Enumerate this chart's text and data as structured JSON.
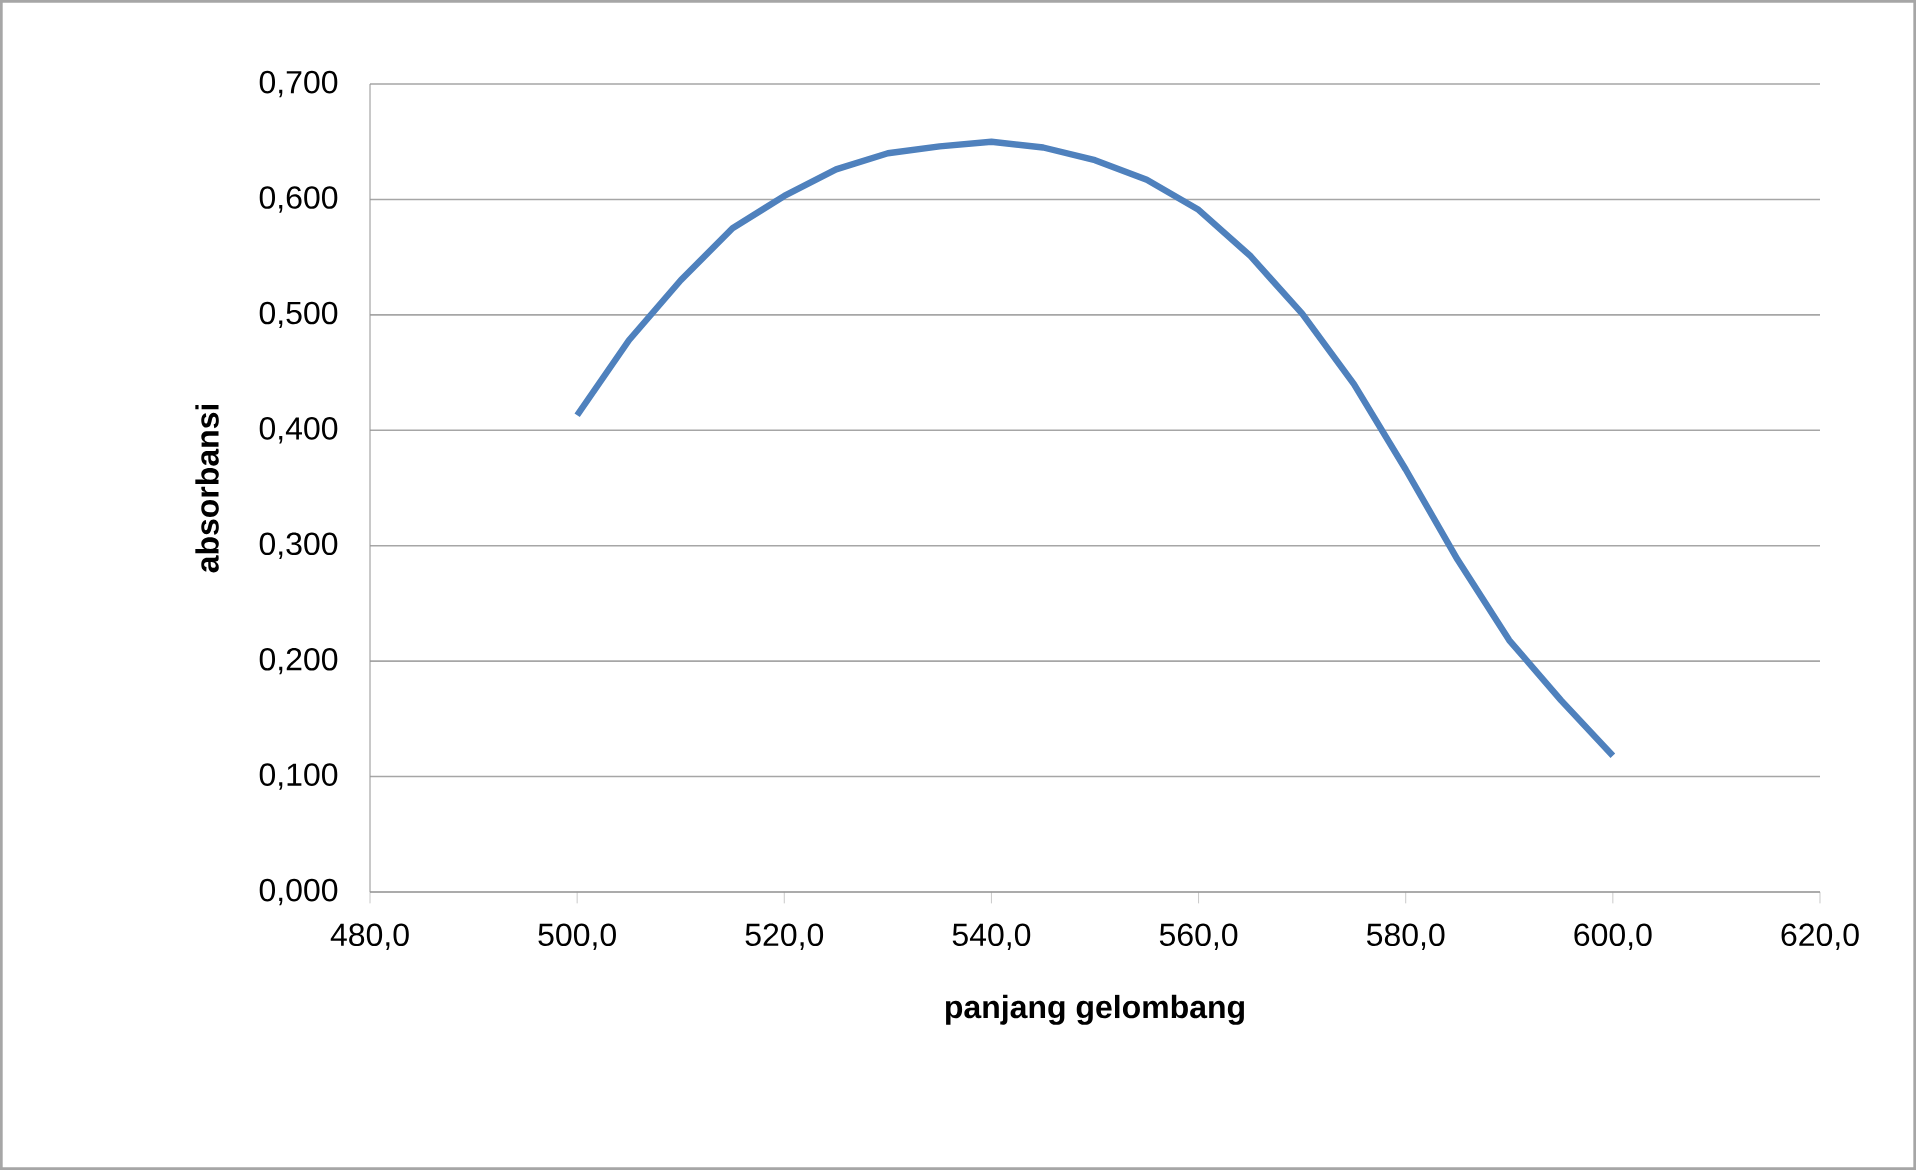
{
  "chart_data": {
    "type": "line",
    "xlabel": "panjang gelombang",
    "ylabel": "absorbansi",
    "x": [
      500,
      505,
      510,
      515,
      520,
      525,
      530,
      535,
      540,
      545,
      550,
      555,
      560,
      565,
      570,
      575,
      580,
      585,
      590,
      595,
      600
    ],
    "series": [
      {
        "color": "#4f81bd",
        "values": [
          0.413,
          0.478,
          0.53,
          0.575,
          0.603,
          0.626,
          0.64,
          0.646,
          0.65,
          0.645,
          0.634,
          0.617,
          0.591,
          0.551,
          0.501,
          0.44,
          0.366,
          0.288,
          0.218,
          0.166,
          0.118
        ]
      }
    ],
    "xlim": [
      480,
      620
    ],
    "xticks": [
      {
        "value": 480,
        "label": "480,0"
      },
      {
        "value": 500,
        "label": "500,0"
      },
      {
        "value": 520,
        "label": "520,0"
      },
      {
        "value": 540,
        "label": "540,0"
      },
      {
        "value": 560,
        "label": "560,0"
      },
      {
        "value": 580,
        "label": "580,0"
      },
      {
        "value": 600,
        "label": "600,0"
      },
      {
        "value": 620,
        "label": "620,0"
      }
    ],
    "ylim": [
      0,
      0.7
    ],
    "yticks": [
      {
        "value": 0,
        "label": "0,000"
      },
      {
        "value": 0.1,
        "label": "0,100"
      },
      {
        "value": 0.2,
        "label": "0,200"
      },
      {
        "value": 0.3,
        "label": "0,300"
      },
      {
        "value": 0.4,
        "label": "0,400"
      },
      {
        "value": 0.5,
        "label": "0,500"
      },
      {
        "value": 0.6,
        "label": "0,600"
      },
      {
        "value": 0.7,
        "label": "0,700"
      }
    ],
    "grid": "y",
    "marker": "none",
    "line_style": "solid"
  }
}
